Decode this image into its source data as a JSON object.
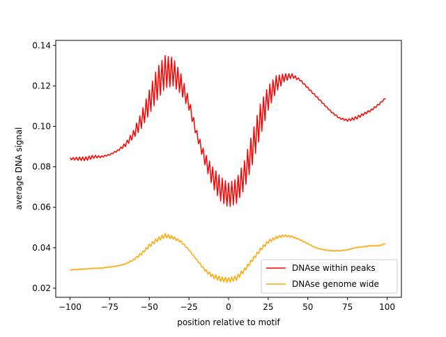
{
  "chart_data": {
    "type": "line",
    "title": "",
    "xlabel": "position relative to motif",
    "ylabel": "average DNA signal",
    "xlim": [
      -109,
      109
    ],
    "ylim": [
      0.0155,
      0.1425
    ],
    "xticks": [
      -100,
      -75,
      -50,
      -25,
      0,
      25,
      50,
      75,
      100
    ],
    "yticks": [
      0.02,
      0.04,
      0.06,
      0.08,
      0.1,
      0.12,
      0.14
    ],
    "ytick_labels": [
      "0.02",
      "0.04",
      "0.06",
      "0.08",
      "0.10",
      "0.12",
      "0.14"
    ],
    "grid": false,
    "legend_position": "lower-right",
    "x": [
      -100,
      -95,
      -90,
      -85,
      -80,
      -75,
      -70,
      -65,
      -60,
      -55,
      -50,
      -45,
      -40,
      -35,
      -30,
      -25,
      -20,
      -15,
      -10,
      -5,
      0,
      5,
      10,
      15,
      20,
      25,
      30,
      35,
      40,
      45,
      50,
      55,
      60,
      65,
      70,
      75,
      80,
      85,
      90,
      95,
      99
    ],
    "series": [
      {
        "name": "DNAse within peaks",
        "color": "#ff0000",
        "mean": [
          0.084,
          0.084,
          0.084,
          0.085,
          0.085,
          0.086,
          0.088,
          0.091,
          0.096,
          0.103,
          0.112,
          0.121,
          0.127,
          0.127,
          0.121,
          0.111,
          0.096,
          0.084,
          0.075,
          0.069,
          0.066,
          0.068,
          0.076,
          0.089,
          0.103,
          0.114,
          0.121,
          0.124,
          0.125,
          0.123,
          0.119,
          0.115,
          0.111,
          0.107,
          0.104,
          0.103,
          0.104,
          0.106,
          0.108,
          0.111,
          0.114
        ],
        "oscillation_amplitude": [
          0.0005,
          0.0008,
          0.001,
          0.0008,
          0.0004,
          0.0003,
          0.0004,
          0.001,
          0.002,
          0.004,
          0.006,
          0.008,
          0.008,
          0.007,
          0.005,
          0.003,
          0.002,
          0.003,
          0.005,
          0.006,
          0.006,
          0.006,
          0.007,
          0.008,
          0.008,
          0.006,
          0.004,
          0.002,
          0.001,
          0.0005,
          0.0004,
          0.0004,
          0.0003,
          0.0003,
          0.0004,
          0.0005,
          0.0008,
          0.0006,
          0.0005,
          0.0004,
          0.0003
        ]
      },
      {
        "name": "DNAse genome wide",
        "color": "#ffa500",
        "mean": [
          0.029,
          0.0293,
          0.0295,
          0.0298,
          0.03,
          0.0305,
          0.031,
          0.032,
          0.034,
          0.037,
          0.041,
          0.044,
          0.046,
          0.045,
          0.043,
          0.039,
          0.034,
          0.029,
          0.026,
          0.0245,
          0.024,
          0.025,
          0.029,
          0.034,
          0.039,
          0.043,
          0.045,
          0.046,
          0.0455,
          0.044,
          0.042,
          0.04,
          0.039,
          0.0385,
          0.0385,
          0.039,
          0.04,
          0.0405,
          0.041,
          0.041,
          0.042
        ],
        "oscillation_amplitude": [
          0.0002,
          0.0002,
          0.0002,
          0.0002,
          0.0002,
          0.0002,
          0.0002,
          0.0002,
          0.0004,
          0.0006,
          0.0008,
          0.001,
          0.001,
          0.0008,
          0.0005,
          0.0003,
          0.0003,
          0.0006,
          0.001,
          0.0012,
          0.0012,
          0.0012,
          0.001,
          0.0008,
          0.0008,
          0.0008,
          0.0006,
          0.0005,
          0.0004,
          0.0003,
          0.0002,
          0.0002,
          0.0002,
          0.0002,
          0.0002,
          0.0002,
          0.0002,
          0.0002,
          0.0002,
          0.0002,
          0.0002
        ]
      }
    ]
  }
}
